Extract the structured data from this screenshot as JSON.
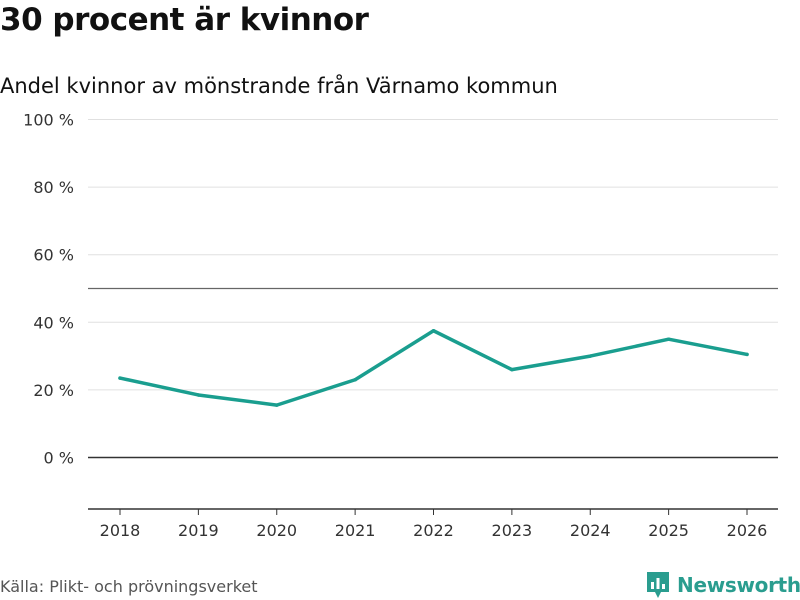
{
  "header": {
    "title": "30 procent är kvinnor",
    "subtitle": "Andel kvinnor av mönstrande från Värnamo kommun"
  },
  "footer": {
    "source": "Källa: Plikt- och prövningsverket",
    "brand": "Newsworthy"
  },
  "colors": {
    "line": "#1a9e8f",
    "grid": "#e0e0e0",
    "reference": "#666666",
    "zero": "#333333",
    "brand": "#2a9d8f"
  },
  "chart_data": {
    "type": "line",
    "title": "30 procent är kvinnor",
    "subtitle": "Andel kvinnor av mönstrande från Värnamo kommun",
    "xlabel": "",
    "ylabel": "",
    "categories": [
      "2018",
      "2019",
      "2020",
      "2021",
      "2022",
      "2023",
      "2024",
      "2025",
      "2026"
    ],
    "series": [
      {
        "name": "Andel kvinnor",
        "values": [
          23.5,
          18.5,
          15.5,
          23,
          37.5,
          26,
          30,
          35,
          30.5
        ]
      }
    ],
    "yticks": [
      0,
      20,
      40,
      60,
      80,
      100
    ],
    "ytick_labels": [
      "0 %",
      "20 %",
      "40 %",
      "60 %",
      "80 %",
      "100 %"
    ],
    "ylim": [
      -15,
      100
    ],
    "reference_line": 50,
    "grid": true
  }
}
